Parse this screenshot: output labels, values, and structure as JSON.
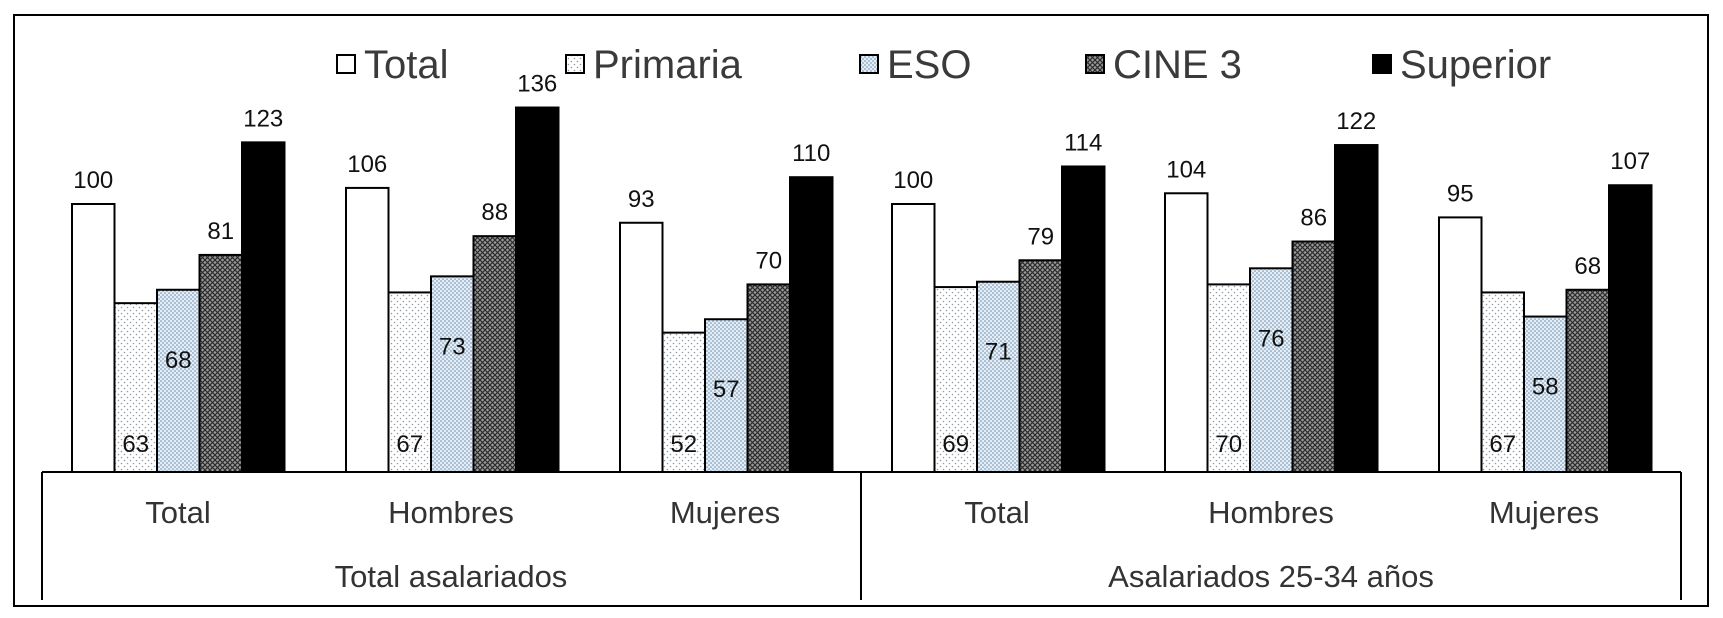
{
  "chart_data": {
    "type": "bar",
    "legend_position": "top",
    "grid": false,
    "ylim": [
      0,
      150
    ],
    "series": [
      {
        "name": "Total",
        "pattern": "white"
      },
      {
        "name": "Primaria",
        "pattern": "dots-sparse"
      },
      {
        "name": "ESO",
        "pattern": "dots-blue"
      },
      {
        "name": "CINE 3",
        "pattern": "crosshatch"
      },
      {
        "name": "Superior",
        "pattern": "black"
      }
    ],
    "groups": [
      {
        "label": "Total asalariados",
        "categories": [
          {
            "label": "Total",
            "values": [
              100,
              63,
              68,
              81,
              123
            ]
          },
          {
            "label": "Hombres",
            "values": [
              106,
              67,
              73,
              88,
              136
            ]
          },
          {
            "label": "Mujeres",
            "values": [
              93,
              52,
              57,
              70,
              110
            ]
          }
        ]
      },
      {
        "label": "Asalariados 25-34 años",
        "categories": [
          {
            "label": "Total",
            "values": [
              100,
              69,
              71,
              79,
              114
            ]
          },
          {
            "label": "Hombres",
            "values": [
              104,
              70,
              76,
              86,
              122
            ]
          },
          {
            "label": "Mujeres",
            "values": [
              95,
              67,
              58,
              68,
              107
            ]
          }
        ]
      }
    ]
  }
}
